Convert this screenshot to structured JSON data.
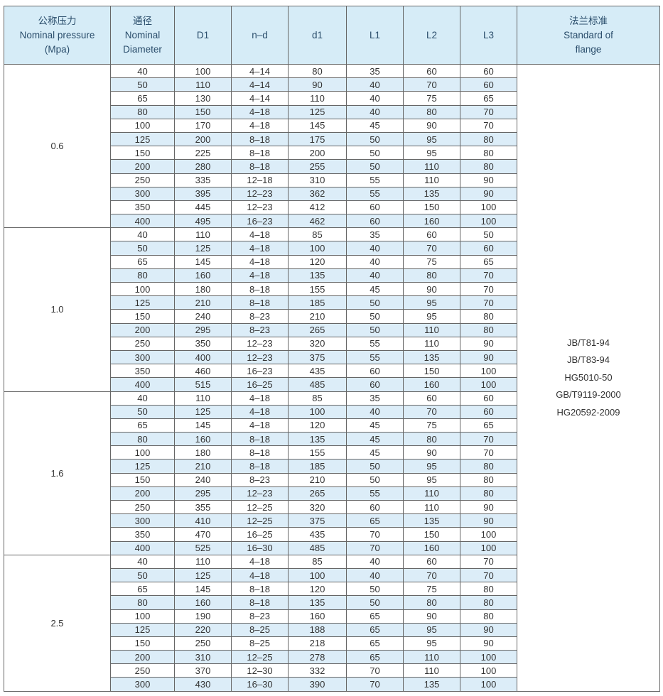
{
  "table": {
    "header": [
      [
        "公称压力",
        "Nominal pressure",
        "(Mpa)"
      ],
      [
        "通径",
        "Nominal",
        "Diameter"
      ],
      [
        "D1"
      ],
      [
        "n–d"
      ],
      [
        "d1"
      ],
      [
        "L1"
      ],
      [
        "L2"
      ],
      [
        "L3"
      ],
      [
        "法兰标准",
        "Standard of",
        "flange"
      ]
    ],
    "groups": [
      {
        "pressure": "0.6",
        "rows": [
          [
            "40",
            "100",
            "4–14",
            "80",
            "35",
            "60",
            "60"
          ],
          [
            "50",
            "110",
            "4–14",
            "90",
            "40",
            "70",
            "60"
          ],
          [
            "65",
            "130",
            "4–14",
            "110",
            "40",
            "75",
            "65"
          ],
          [
            "80",
            "150",
            "4–18",
            "125",
            "40",
            "80",
            "70"
          ],
          [
            "100",
            "170",
            "4–18",
            "145",
            "45",
            "90",
            "70"
          ],
          [
            "125",
            "200",
            "8–18",
            "175",
            "50",
            "95",
            "80"
          ],
          [
            "150",
            "225",
            "8–18",
            "200",
            "50",
            "95",
            "80"
          ],
          [
            "200",
            "280",
            "8–18",
            "255",
            "50",
            "110",
            "80"
          ],
          [
            "250",
            "335",
            "12–18",
            "310",
            "55",
            "110",
            "90"
          ],
          [
            "300",
            "395",
            "12–23",
            "362",
            "55",
            "135",
            "90"
          ],
          [
            "350",
            "445",
            "12–23",
            "412",
            "60",
            "150",
            "100"
          ],
          [
            "400",
            "495",
            "16–23",
            "462",
            "60",
            "160",
            "100"
          ]
        ]
      },
      {
        "pressure": "1.0",
        "rows": [
          [
            "40",
            "110",
            "4–18",
            "85",
            "35",
            "60",
            "50"
          ],
          [
            "50",
            "125",
            "4–18",
            "100",
            "40",
            "70",
            "60"
          ],
          [
            "65",
            "145",
            "4–18",
            "120",
            "40",
            "75",
            "65"
          ],
          [
            "80",
            "160",
            "4–18",
            "135",
            "40",
            "80",
            "70"
          ],
          [
            "100",
            "180",
            "8–18",
            "155",
            "45",
            "90",
            "70"
          ],
          [
            "125",
            "210",
            "8–18",
            "185",
            "50",
            "95",
            "70"
          ],
          [
            "150",
            "240",
            "8–23",
            "210",
            "50",
            "95",
            "80"
          ],
          [
            "200",
            "295",
            "8–23",
            "265",
            "50",
            "110",
            "80"
          ],
          [
            "250",
            "350",
            "12–23",
            "320",
            "55",
            "110",
            "90"
          ],
          [
            "300",
            "400",
            "12–23",
            "375",
            "55",
            "135",
            "90"
          ],
          [
            "350",
            "460",
            "16–23",
            "435",
            "60",
            "150",
            "100"
          ],
          [
            "400",
            "515",
            "16–25",
            "485",
            "60",
            "160",
            "100"
          ]
        ]
      },
      {
        "pressure": "1.6",
        "rows": [
          [
            "40",
            "110",
            "4–18",
            "85",
            "35",
            "60",
            "60"
          ],
          [
            "50",
            "125",
            "4–18",
            "100",
            "40",
            "70",
            "60"
          ],
          [
            "65",
            "145",
            "4–18",
            "120",
            "45",
            "75",
            "65"
          ],
          [
            "80",
            "160",
            "8–18",
            "135",
            "45",
            "80",
            "70"
          ],
          [
            "100",
            "180",
            "8–18",
            "155",
            "45",
            "90",
            "70"
          ],
          [
            "125",
            "210",
            "8–18",
            "185",
            "50",
            "95",
            "80"
          ],
          [
            "150",
            "240",
            "8–23",
            "210",
            "50",
            "95",
            "80"
          ],
          [
            "200",
            "295",
            "12–23",
            "265",
            "55",
            "110",
            "80"
          ],
          [
            "250",
            "355",
            "12–25",
            "320",
            "60",
            "110",
            "90"
          ],
          [
            "300",
            "410",
            "12–25",
            "375",
            "65",
            "135",
            "90"
          ],
          [
            "350",
            "470",
            "16–25",
            "435",
            "70",
            "150",
            "100"
          ],
          [
            "400",
            "525",
            "16–30",
            "485",
            "70",
            "160",
            "100"
          ]
        ]
      },
      {
        "pressure": "2.5",
        "rows": [
          [
            "40",
            "110",
            "4–18",
            "85",
            "40",
            "60",
            "70"
          ],
          [
            "50",
            "125",
            "4–18",
            "100",
            "40",
            "70",
            "70"
          ],
          [
            "65",
            "145",
            "8–18",
            "120",
            "50",
            "75",
            "80"
          ],
          [
            "80",
            "160",
            "8–18",
            "135",
            "50",
            "80",
            "80"
          ],
          [
            "100",
            "190",
            "8–23",
            "160",
            "65",
            "90",
            "80"
          ],
          [
            "125",
            "220",
            "8–25",
            "188",
            "65",
            "95",
            "90"
          ],
          [
            "150",
            "250",
            "8–25",
            "218",
            "65",
            "95",
            "90"
          ],
          [
            "200",
            "310",
            "12–25",
            "278",
            "65",
            "110",
            "100"
          ],
          [
            "250",
            "370",
            "12–30",
            "332",
            "70",
            "110",
            "100"
          ],
          [
            "300",
            "430",
            "16–30",
            "390",
            "70",
            "135",
            "100"
          ]
        ]
      }
    ],
    "standard": [
      "JB/T81-94",
      "JB/T83-94",
      "HG5010-50",
      "GB/T9119-2000",
      "HG20592-2009"
    ]
  }
}
